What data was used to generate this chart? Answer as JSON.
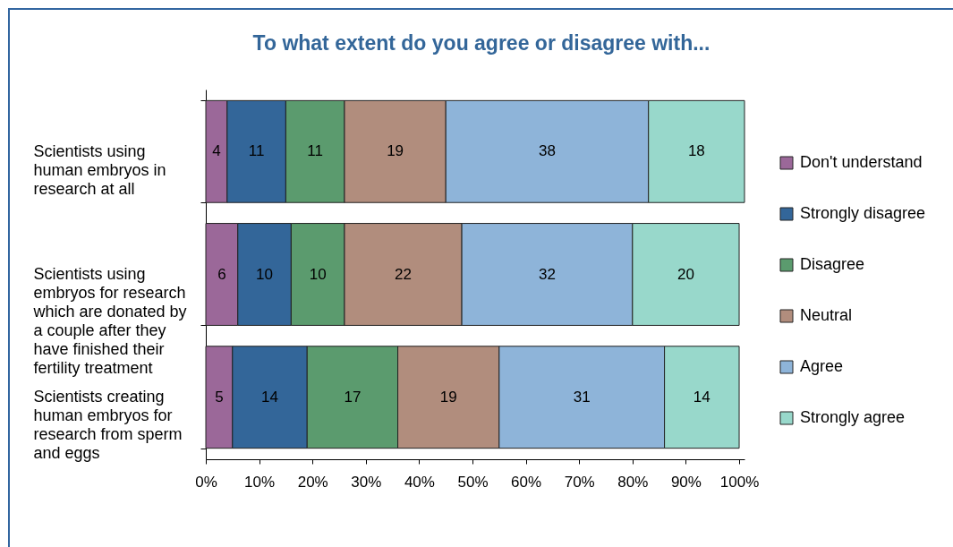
{
  "chart_data": {
    "type": "bar",
    "title": "To what extent do you agree or disagree with...",
    "orientation": "horizontal",
    "stacked": true,
    "data_labels": true,
    "legend": "right",
    "categories": [
      "Scientists using human embryos in research at all",
      "Scientists using embryos for research which are donated by a couple after they have finished their fertility treatment",
      "Scientists creating human embryos for research from sperm and eggs"
    ],
    "series": [
      {
        "name": "Don't understand",
        "color": "#9b6899",
        "values": [
          4,
          6,
          5
        ]
      },
      {
        "name": "Strongly disagree",
        "color": "#336699",
        "values": [
          11,
          10,
          14
        ]
      },
      {
        "name": "Disagree",
        "color": "#5b9b6e",
        "values": [
          11,
          10,
          17
        ]
      },
      {
        "name": "Neutral",
        "color": "#b18d7d",
        "values": [
          19,
          22,
          19
        ]
      },
      {
        "name": "Agree",
        "color": "#8eb4d9",
        "values": [
          38,
          32,
          31
        ]
      },
      {
        "name": "Strongly agree",
        "color": "#98d8cb",
        "values": [
          18,
          20,
          14
        ]
      }
    ],
    "xlim": [
      0,
      101
    ],
    "xticks": [
      {
        "value": 0,
        "label": "0%"
      },
      {
        "value": 10,
        "label": "10%"
      },
      {
        "value": 20,
        "label": "20%"
      },
      {
        "value": 30,
        "label": "30%"
      },
      {
        "value": 40,
        "label": "40%"
      },
      {
        "value": 50,
        "label": "50%"
      },
      {
        "value": 60,
        "label": "60%"
      },
      {
        "value": 70,
        "label": "70%"
      },
      {
        "value": 80,
        "label": "80%"
      },
      {
        "value": 90,
        "label": "90%"
      },
      {
        "value": 100,
        "label": "100%"
      }
    ]
  }
}
